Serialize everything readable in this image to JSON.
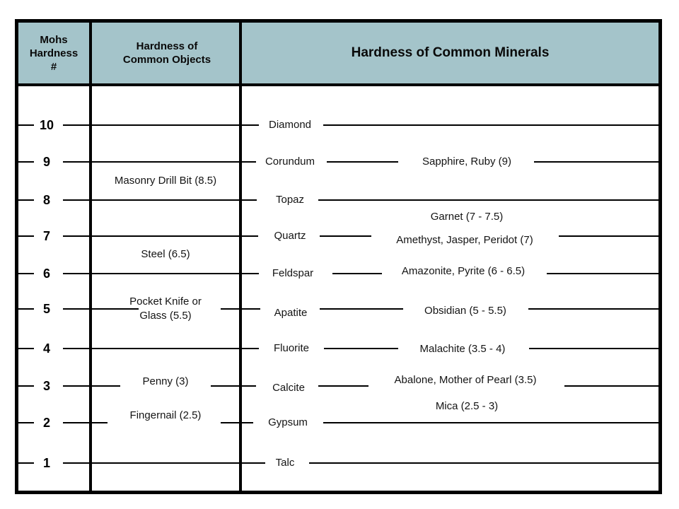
{
  "header": {
    "col1_lines": [
      "Mohs",
      "Hardness",
      "#"
    ],
    "col2_lines": [
      "Hardness of",
      "Common Objects"
    ],
    "col3": "Hardness of Common Minerals"
  },
  "colors": {
    "header_bg": "#a4c4ca",
    "line": "#000000",
    "border": "#000000",
    "background": "#ffffff"
  },
  "levels": [
    {
      "value": "10",
      "mineral": "Diamond"
    },
    {
      "value": "9",
      "mineral": "Corundum",
      "gem": "Sapphire, Ruby (9)"
    },
    {
      "value": "8",
      "mineral": "Topaz"
    },
    {
      "value": "7",
      "mineral": "Quartz",
      "gem": "Amethyst, Jasper, Peridot (7)"
    },
    {
      "value": "6",
      "mineral": "Feldspar",
      "gem": "Amazonite, Pyrite (6 - 6.5)"
    },
    {
      "value": "5",
      "mineral": "Apatite",
      "gem": "Obsidian (5 - 5.5)"
    },
    {
      "value": "4",
      "mineral": "Fluorite",
      "gem": "Malachite (3.5 - 4)"
    },
    {
      "value": "3",
      "mineral": "Calcite",
      "gem": "Abalone, Mother of Pearl (3.5)"
    },
    {
      "value": "2",
      "mineral": "Gypsum"
    },
    {
      "value": "1",
      "mineral": "Talc"
    }
  ],
  "floating_minerals": [
    {
      "label": "Garnet (7 - 7.5)"
    },
    {
      "label": "Mica (2.5 - 3)"
    }
  ],
  "objects": [
    {
      "label": "Masonry Drill Bit (8.5)"
    },
    {
      "label": "Steel (6.5)"
    },
    {
      "label": "Pocket Knife or\nGlass (5.5)"
    },
    {
      "label": "Penny (3)"
    },
    {
      "label": "Fingernail (2.5)"
    }
  ]
}
